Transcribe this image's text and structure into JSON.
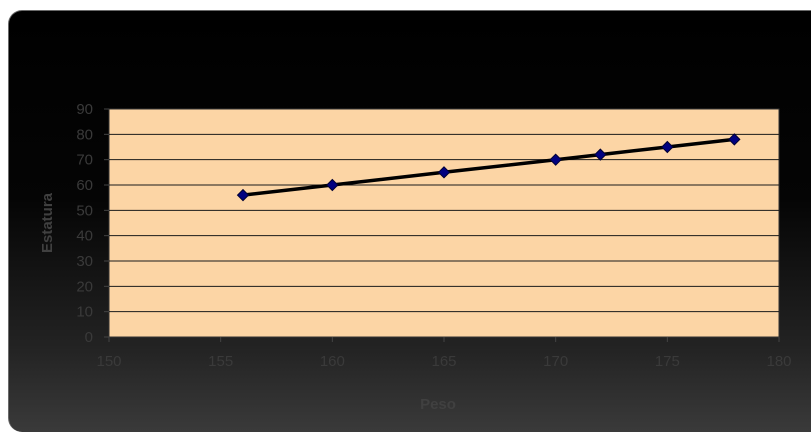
{
  "chart_data": {
    "type": "scatter",
    "title": "",
    "xlabel": "Peso",
    "ylabel": "Estatura",
    "xlim": [
      150,
      180
    ],
    "ylim": [
      0,
      90
    ],
    "x_ticks": [
      "150",
      "155",
      "160",
      "165",
      "170",
      "175",
      "180"
    ],
    "y_ticks": [
      "0",
      "10",
      "20",
      "30",
      "40",
      "50",
      "60",
      "70",
      "80",
      "90"
    ],
    "grid": "horizontal",
    "legend": "none",
    "series": [
      {
        "x": [
          156,
          160,
          165,
          170,
          172,
          175,
          178
        ],
        "y": [
          56,
          60,
          65,
          70,
          72,
          75,
          78
        ],
        "line_color": "#000000",
        "marker": "diamond",
        "marker_color": "#000080"
      }
    ],
    "plot_background": "#fcd5a5",
    "chart_background": "#000000"
  }
}
